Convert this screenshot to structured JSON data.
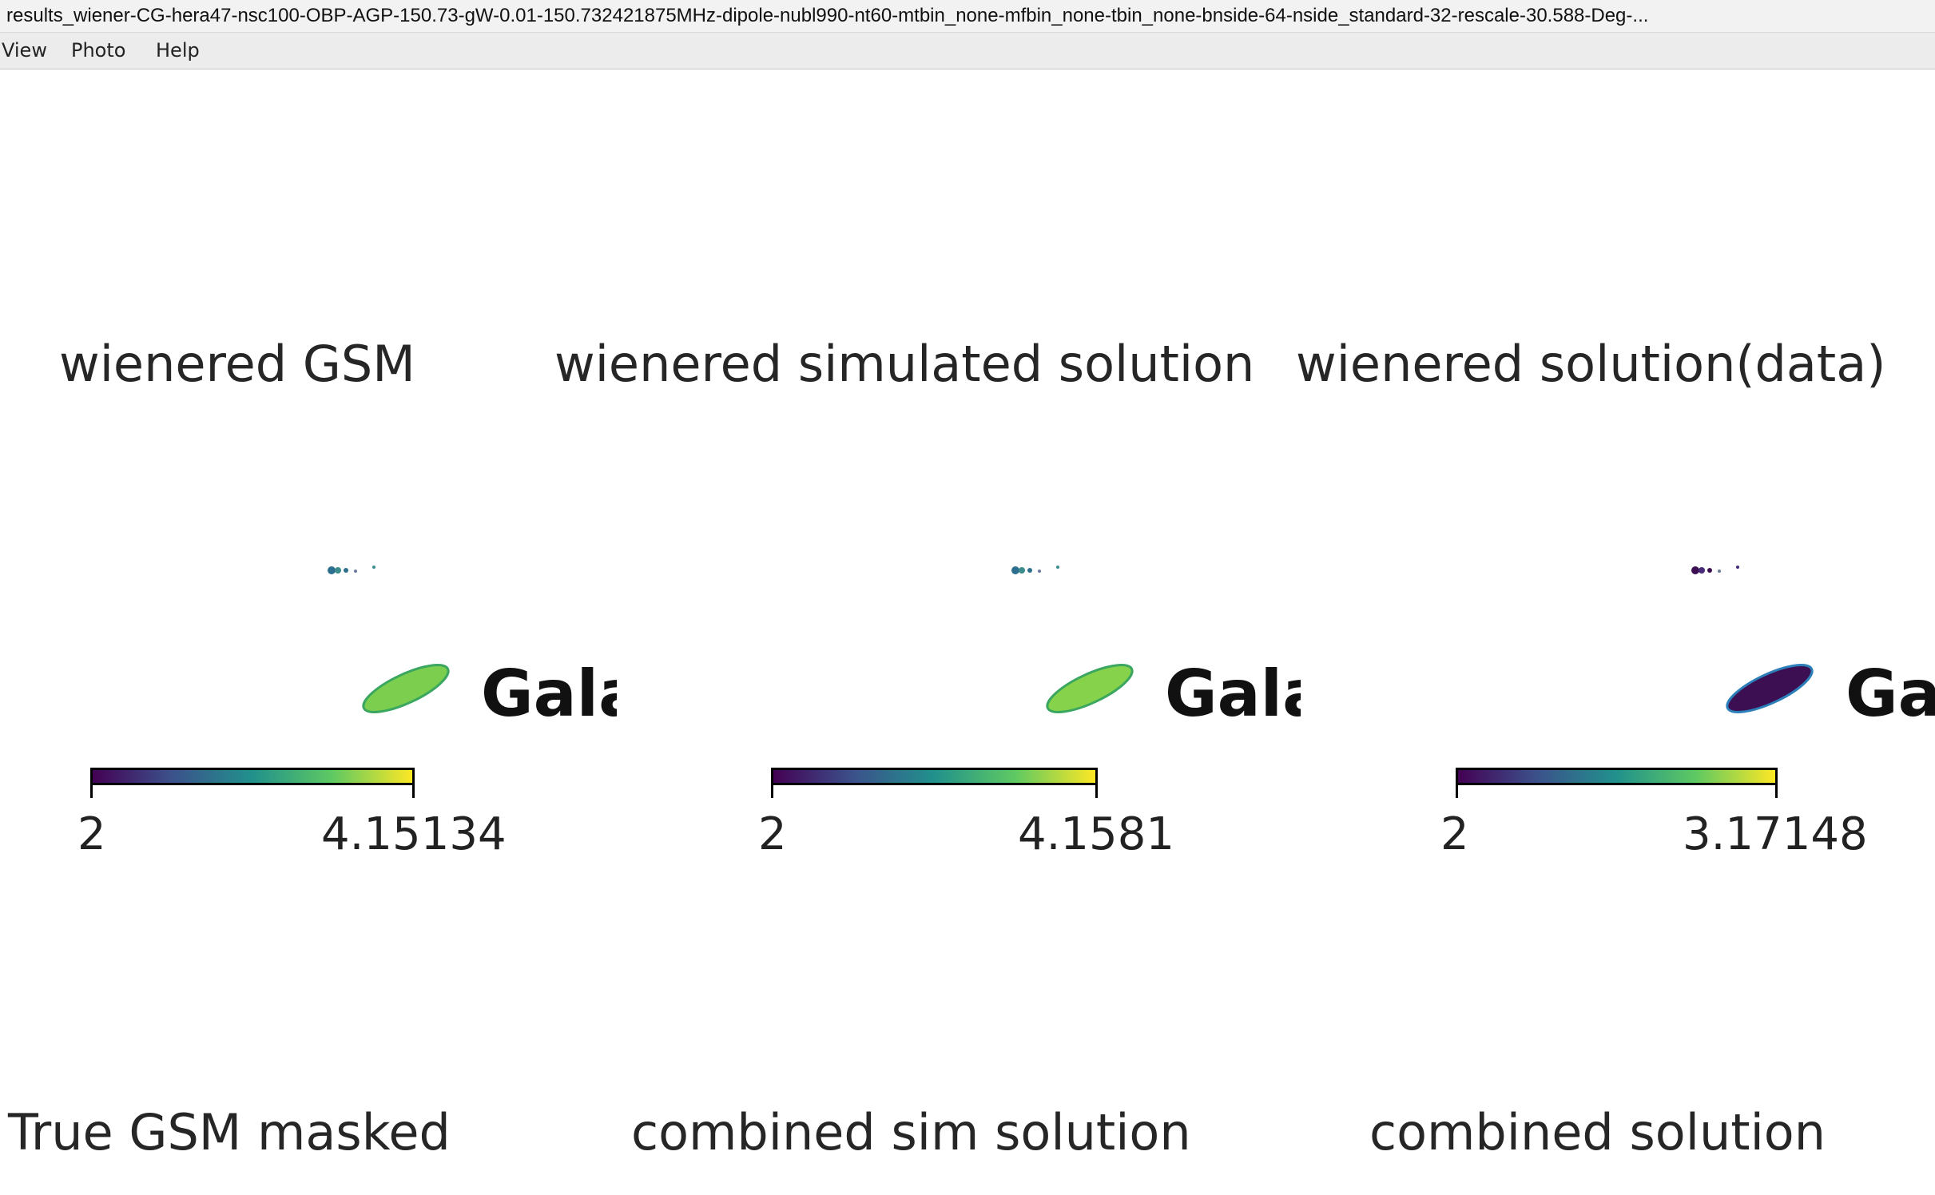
{
  "window": {
    "title": "results_wiener-CG-hera47-nsc100-OBP-AGP-150.73-gW-0.01-150.732421875MHz-dipole-nubl990-nt60-mtbin_none-mfbin_none-tbin_none-bnside-64-nside_standard-32-rescale-30.588-Deg-..."
  },
  "menu": {
    "items": [
      "View",
      "Photo",
      "Help"
    ]
  },
  "panels_top": [
    {
      "title": "wienered GSM",
      "gal_label": "Gala",
      "cb_min": "2",
      "cb_max": "4.15134",
      "blob_color": "#7ccf4e",
      "blob_edge": "#3aa65f"
    },
    {
      "title": "wienered simulated solution",
      "gal_label": "Gala",
      "cb_min": "2",
      "cb_max": "4.1581",
      "blob_color": "#86d24a",
      "blob_edge": "#3aa65f"
    },
    {
      "title": "wienered solution(data)",
      "gal_label": "Gala",
      "cb_min": "2",
      "cb_max": "3.17148",
      "blob_color": "#3b0f52",
      "blob_edge": "#2c7fb8"
    }
  ],
  "panels_bottom": [
    {
      "title": "True GSM masked"
    },
    {
      "title": "combined sim solution"
    },
    {
      "title": "combined solution"
    }
  ],
  "colors": {
    "viridis_start": "#440154",
    "viridis_mid": "#21918c",
    "viridis_end": "#fde725"
  }
}
